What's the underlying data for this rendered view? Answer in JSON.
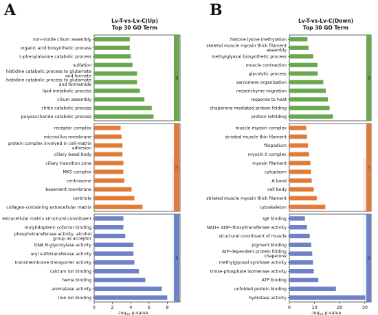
{
  "colors": {
    "bp": "#6aa84f",
    "cc": "#e07b39",
    "mf": "#6f82c6",
    "cc_overlay": "#ffe6f2",
    "mf_overlay": "#e8fbff"
  },
  "chart_data": [
    {
      "letter": "A",
      "type": "bar",
      "title": "Lv-T-vs-Lv-C(Up)",
      "subtitle": "Top 30 GO Term",
      "xlabel_main": "-log",
      "xlabel_sub": "10",
      "xlabel_tail": " p-value",
      "xlim": [
        0,
        9.4
      ],
      "xticks": [
        0,
        2,
        4,
        6,
        8
      ],
      "ontology_labels": [
        "BP",
        "CC",
        "MF"
      ],
      "groups": [
        {
          "ontology": "BP",
          "categories": [
            [
              "non-motile cilium assembly"
            ],
            [
              "organic acid biosynthetic process"
            ],
            [
              "L-phenylalanine catabolic process"
            ],
            [
              "sulfation"
            ],
            [
              "histidine catabolic process to glutamate",
              "and formate"
            ],
            [
              "histidine catabolic process to glutamate",
              "and formamide"
            ],
            [
              "lipid metabolic process"
            ],
            [
              "cilium assembly"
            ],
            [
              "chitin catabolic process"
            ],
            [
              "polysaccharide catabolic process"
            ]
          ],
          "values": [
            3.9,
            3.9,
            4.0,
            4.2,
            4.7,
            4.7,
            5.0,
            5.5,
            6.3,
            6.5
          ]
        },
        {
          "ontology": "CC",
          "categories": [
            [
              "receptor complex"
            ],
            [
              "microvillus membrane"
            ],
            [
              "protein complex involved in cell-matrix",
              "adhesion"
            ],
            [
              "ciliary basal body"
            ],
            [
              "ciliary transition zone"
            ],
            [
              "MKS complex"
            ],
            [
              "centrosome"
            ],
            [
              "basement membrane"
            ],
            [
              "centriole"
            ],
            [
              "collagen-containing extracellular matrix"
            ]
          ],
          "values": [
            2.9,
            3.0,
            3.1,
            3.1,
            3.2,
            3.2,
            3.3,
            4.1,
            4.4,
            5.3
          ]
        },
        {
          "ontology": "MF",
          "categories": [
            [
              "extracellular matrix structural constituent"
            ],
            [
              "molybdopterin cofactor binding"
            ],
            [
              "phosphotransferase activity, alcohol",
              "group as acceptor"
            ],
            [
              "DNA N-glycosylase activity"
            ],
            [
              "aryl sulfotransferase activity"
            ],
            [
              "transmembrane transporter activity"
            ],
            [
              "calcium ion binding"
            ],
            [
              "heme binding"
            ],
            [
              "aromatase activity"
            ],
            [
              "iron ion binding"
            ]
          ],
          "values": [
            3.2,
            3.2,
            3.4,
            4.3,
            4.3,
            4.4,
            4.9,
            5.6,
            7.4,
            8.0
          ]
        }
      ]
    },
    {
      "letter": "B",
      "type": "bar",
      "title": "Lv-T-vs-Lv-C(Down)",
      "subtitle": "Top 30 GO Term",
      "xlabel_main": "-log",
      "xlabel_sub": "10",
      "xlabel_tail": " p-value",
      "xlim": [
        0,
        32.5
      ],
      "xticks": [
        0,
        10,
        20,
        30
      ],
      "ontology_labels": [
        "BP",
        "CC",
        "MF"
      ],
      "groups": [
        {
          "ontology": "BP",
          "categories": [
            [
              "histone lysine methylation"
            ],
            [
              "skeletal muscle myosin thick filament",
              "assembly"
            ],
            [
              "methylglyoxal biosynthetic process"
            ],
            [
              "muscle contraction"
            ],
            [
              "glycolytic process"
            ],
            [
              "sarcomere organization"
            ],
            [
              "mesenchyme migration"
            ],
            [
              "response to heat"
            ],
            [
              "chaperone-mediated protein folding"
            ],
            [
              "protein refolding"
            ]
          ],
          "values": [
            7.2,
            7.6,
            9.5,
            11.2,
            11.3,
            13.5,
            14.5,
            15.3,
            16.0,
            17.3
          ]
        },
        {
          "ontology": "CC",
          "categories": [
            [
              "muscle myosin complex"
            ],
            [
              "striated muscle thin filament"
            ],
            [
              "filopodium"
            ],
            [
              "myosin II complex"
            ],
            [
              "myosin filament"
            ],
            [
              "cytoplasm"
            ],
            [
              "A band"
            ],
            [
              "cell body"
            ],
            [
              "striated muscle myosin thick filament"
            ],
            [
              "cytoskeleton"
            ]
          ],
          "values": [
            6.7,
            7.0,
            7.4,
            7.8,
            8.4,
            8.6,
            8.9,
            9.7,
            10.9,
            14.3
          ]
        },
        {
          "ontology": "MF",
          "categories": [
            [
              "IgE binding"
            ],
            [
              "NAD+ ADP-ribosyltransferase activity"
            ],
            [
              "structural constituent of muscle"
            ],
            [
              "pigment binding"
            ],
            [
              "ATP-dependent protein folding",
              "chaperone"
            ],
            [
              "methylglyoxal synthase activity"
            ],
            [
              "triose-phosphate isomerase activity"
            ],
            [
              "ATP binding"
            ],
            [
              "unfolded protein binding"
            ],
            [
              "hydrolase activity"
            ]
          ],
          "values": [
            6.2,
            7.0,
            8.1,
            8.7,
            9.1,
            9.4,
            9.7,
            11.5,
            18.5,
            30.2
          ]
        }
      ]
    }
  ]
}
